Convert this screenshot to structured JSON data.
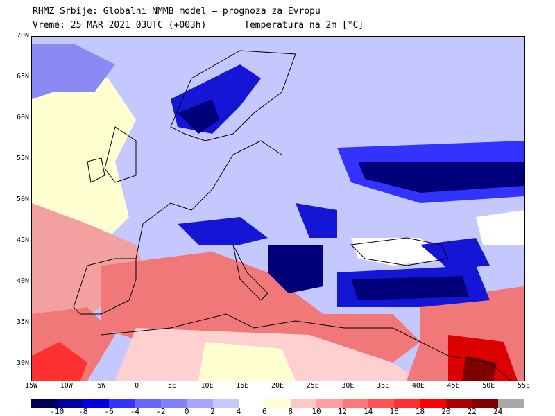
{
  "header": {
    "line1": "RHMZ Srbije: Globalni NMMB model — prognoza za Evropu",
    "line2": "Vreme: 25 MAR 2021 03UTC (+003h)",
    "line3": "Temperatura na 2m [°C]"
  },
  "axes": {
    "lat_labels": [
      "70N",
      "65N",
      "60N",
      "55N",
      "50N",
      "45N",
      "40N",
      "35N",
      "30N"
    ],
    "lon_labels": [
      "15W",
      "10W",
      "5W",
      "0",
      "5E",
      "10E",
      "15E",
      "20E",
      "25E",
      "30E",
      "35E",
      "40E",
      "45E",
      "50E",
      "55E"
    ]
  },
  "colorbar": {
    "labels": [
      "-10",
      "-8",
      "-6",
      "-4",
      "-2",
      "0",
      "2",
      "4",
      "6",
      "8",
      "10",
      "12",
      "14",
      "16",
      "18",
      "20",
      "22",
      "24"
    ],
    "colors": [
      "#00005a",
      "#0000a0",
      "#0000e6",
      "#3333ff",
      "#6666ff",
      "#8080ff",
      "#a5a5ff",
      "#c8c8ff",
      "#ffffff",
      "#ffffd2",
      "#ffc8c8",
      "#ff9f9f",
      "#ff7878",
      "#ff5555",
      "#ff3030",
      "#ff0000",
      "#b00000",
      "#800000",
      "#a9a9a9"
    ]
  },
  "map": {
    "colors": {
      "land": "#dfe3ff",
      "lowlands": "#8a8af5",
      "cold": "#1515d6",
      "verycold": "#00007a",
      "warm": "#f07878",
      "hot": "#dd0000",
      "mild": "#ffd0d0",
      "pale": "#ffffd2",
      "white": "#ffffff",
      "lines": "#000000"
    }
  }
}
